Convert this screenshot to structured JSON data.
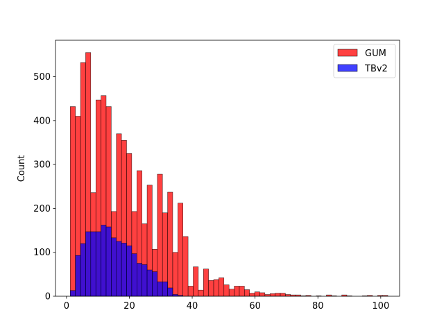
{
  "chart_data": {
    "type": "bar",
    "title": "",
    "xlabel": "",
    "ylabel": "Count",
    "xlim": [
      -3.5,
      106
    ],
    "ylim": [
      0,
      583
    ],
    "xticks": [
      0,
      20,
      40,
      60,
      80,
      100
    ],
    "yticks": [
      0,
      100,
      200,
      300,
      400,
      500
    ],
    "bin_width": 1.63,
    "grid": false,
    "legend_position": "top-right",
    "series": [
      {
        "name": "GUM",
        "color": "#ff0000",
        "opacity": 0.75,
        "bin_start": 1.2,
        "counts": [
          432,
          410,
          532,
          555,
          236,
          447,
          457,
          432,
          193,
          370,
          355,
          325,
          193,
          286,
          165,
          253,
          107,
          278,
          190,
          237,
          100,
          212,
          136,
          23,
          67,
          14,
          62,
          36,
          38,
          42,
          26,
          16,
          23,
          23,
          15,
          7,
          10,
          8,
          4,
          6,
          7,
          7,
          4,
          3,
          3,
          1,
          2,
          1,
          0,
          3,
          1,
          3,
          1,
          1,
          2,
          0,
          2,
          2
        ],
        "bin_starts": [
          1.2,
          2.83,
          4.46,
          6.09,
          7.72,
          9.35,
          10.98,
          12.61,
          14.24,
          15.87,
          17.5,
          19.13,
          20.76,
          22.39,
          24.02,
          25.65,
          27.28,
          28.91,
          30.54,
          32.17,
          33.8,
          35.43,
          37.06,
          38.69,
          40.32,
          41.95,
          43.58,
          45.21,
          46.84,
          48.47,
          50.1,
          51.73,
          53.36,
          54.99,
          56.62,
          58.25,
          59.88,
          61.51,
          63.14,
          64.77,
          66.4,
          68.03,
          69.66,
          71.29,
          72.92,
          74.55,
          76.18,
          79.44,
          81.07,
          82.7,
          84.33,
          87.59,
          89.22,
          94.11,
          95.74,
          97.37,
          99.0,
          100.63
        ]
      },
      {
        "name": "TBv2",
        "color": "#0000ff",
        "opacity": 0.75,
        "bin_starts": [
          1.2,
          2.83,
          4.46,
          6.09,
          7.72,
          9.35,
          10.98,
          12.61,
          14.24,
          15.87,
          17.5,
          19.13,
          20.76,
          22.39,
          24.02,
          25.65,
          27.28,
          28.91,
          30.54,
          32.17,
          33.8,
          35.43
        ],
        "counts": [
          13,
          93,
          120,
          147,
          147,
          147,
          162,
          158,
          133,
          125,
          121,
          115,
          97,
          75,
          72,
          60,
          56,
          33,
          33,
          19,
          4,
          2
        ]
      }
    ]
  }
}
